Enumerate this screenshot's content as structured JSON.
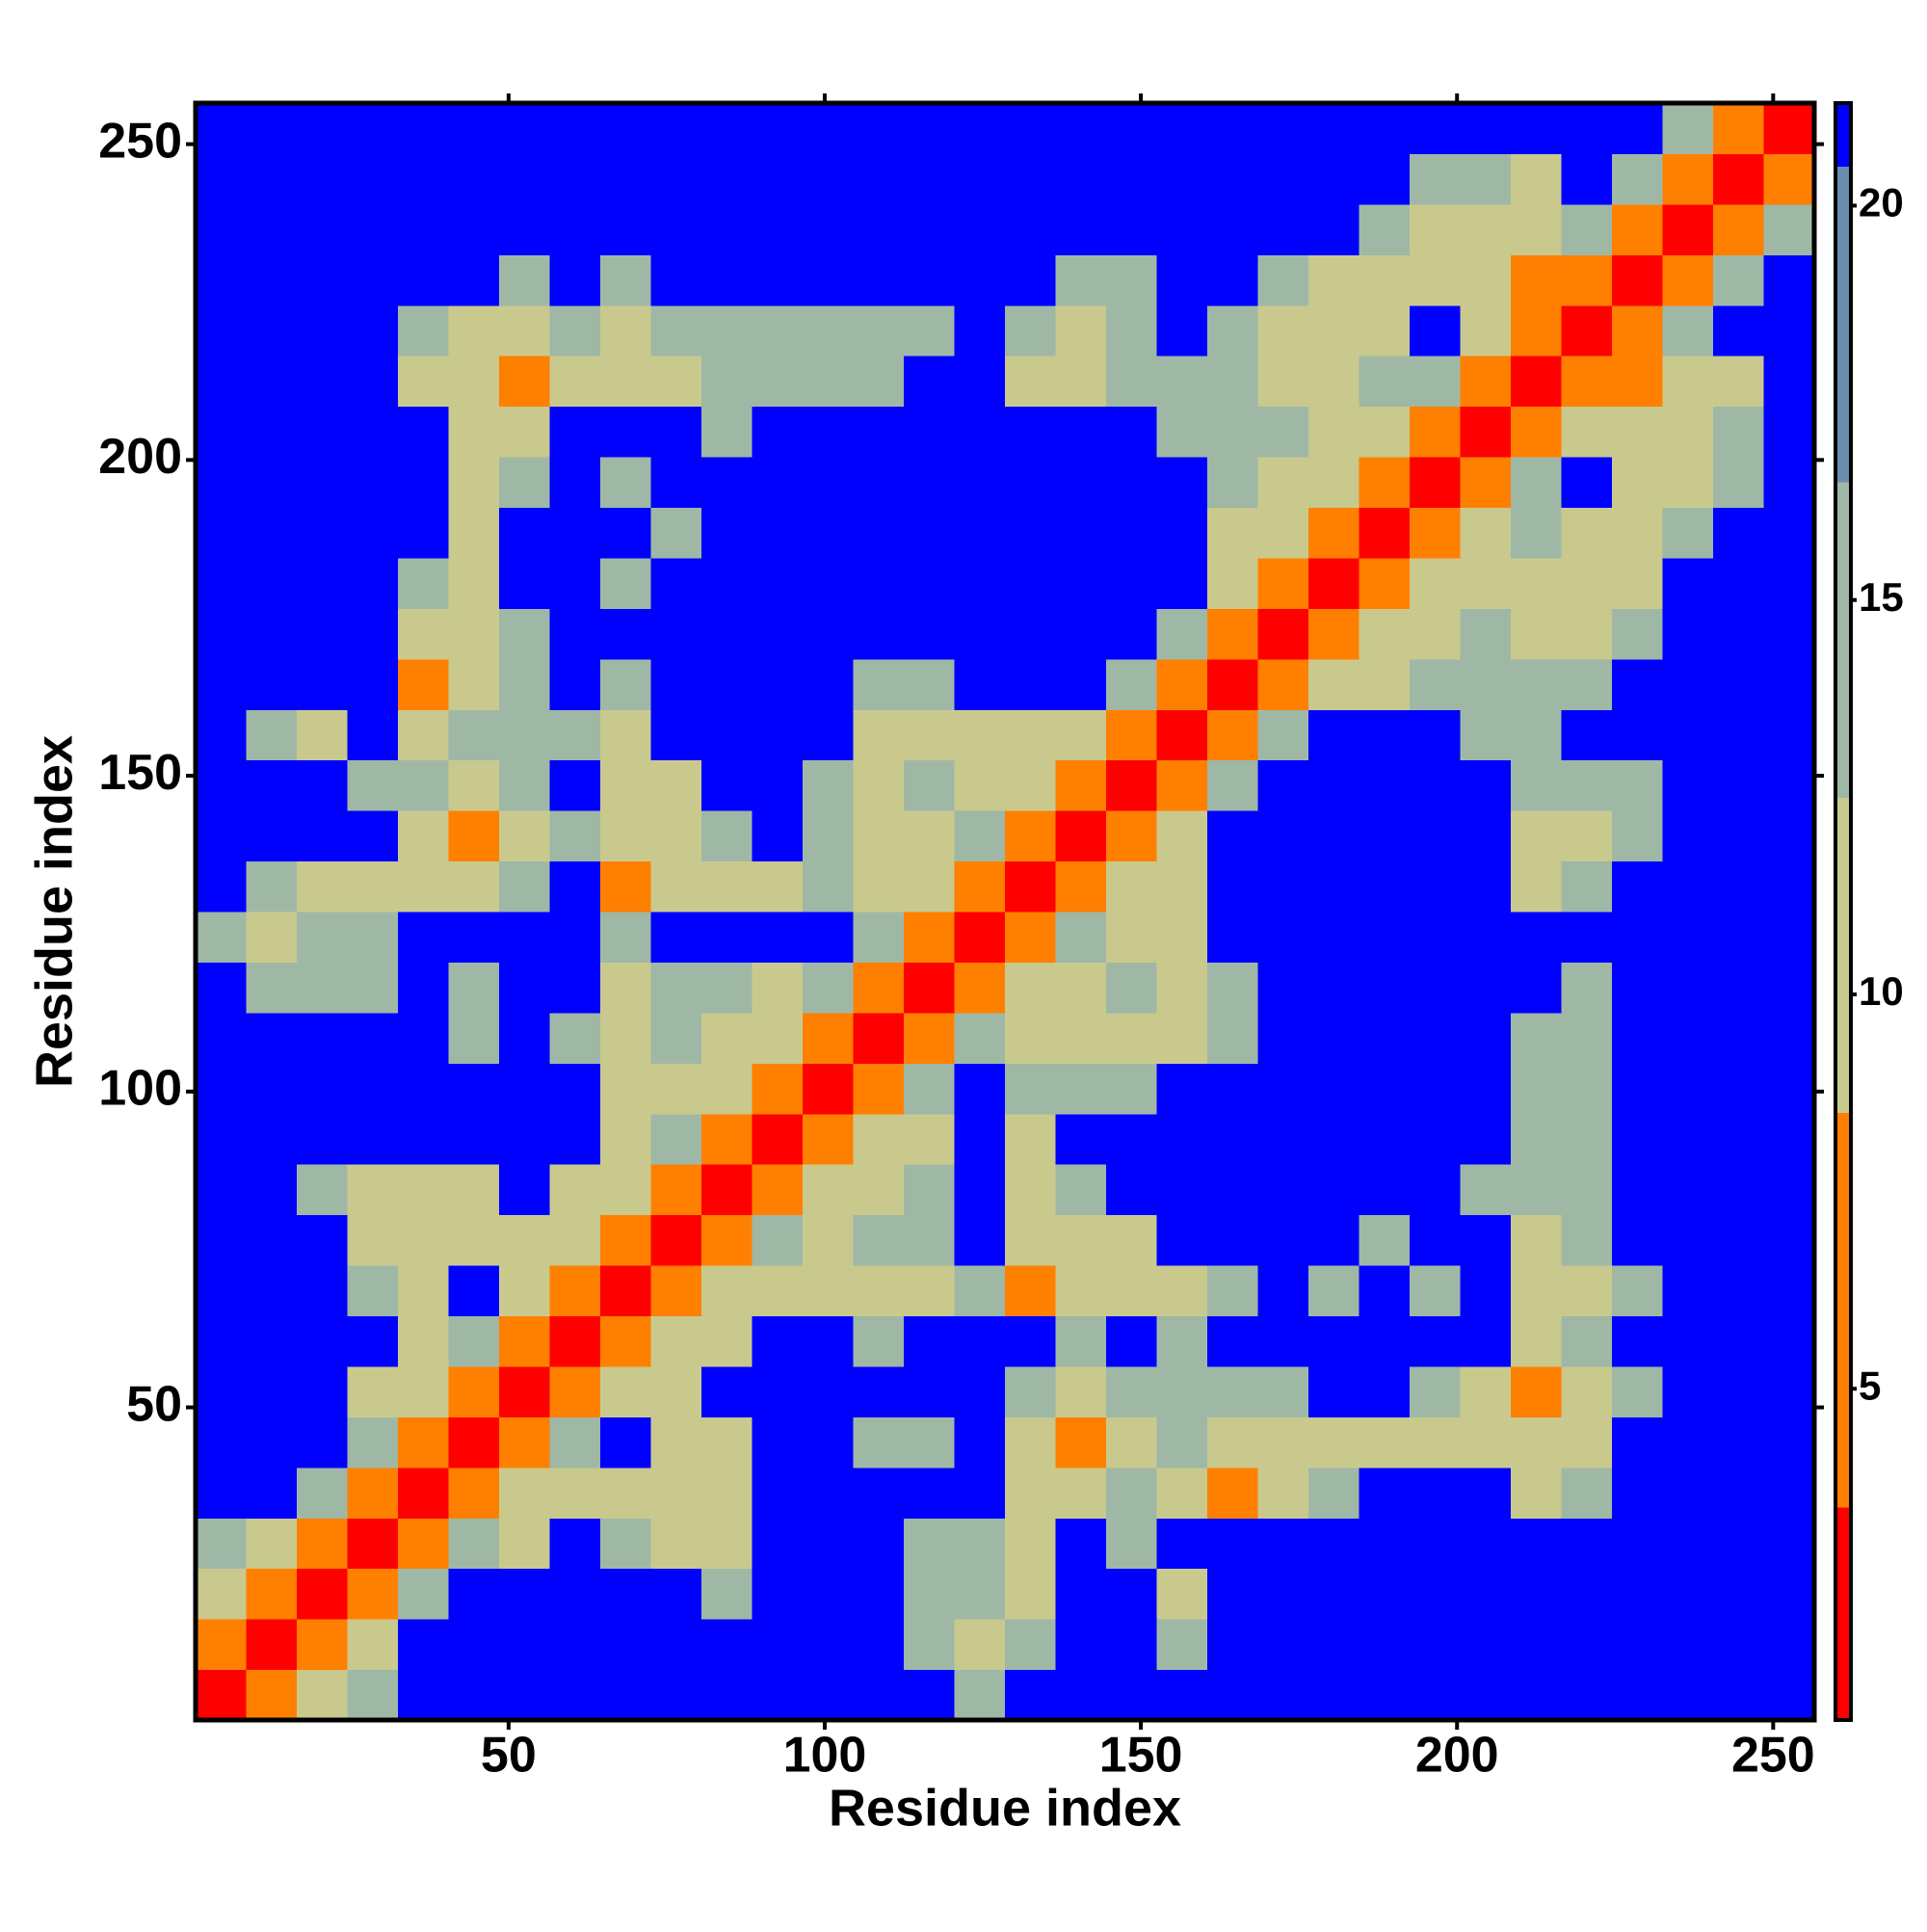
{
  "chart_data": {
    "type": "heatmap",
    "x_label": "Residue index",
    "y_label": "Residue index",
    "xlim": [
      0.5,
      256.5
    ],
    "ylim": [
      0.5,
      256.5
    ],
    "xticks": [
      50,
      100,
      150,
      200,
      250
    ],
    "yticks": [
      50,
      100,
      150,
      200,
      250
    ],
    "xbins": [
      0.5,
      8.5,
      16.5,
      24.5,
      32.5,
      40.5,
      48.5,
      56.5,
      64.5,
      72.5,
      80.5,
      88.5,
      96.5,
      104.5,
      112.5,
      120.5,
      128.5,
      136.5,
      144.5,
      152.5,
      160.5,
      168.5,
      176.5,
      184.5,
      192.5,
      200.5,
      208.5,
      216.5,
      224.5,
      232.5,
      240.5,
      248.5,
      256.5
    ],
    "ybins": [
      0.5,
      8.5,
      16.5,
      24.5,
      32.5,
      40.5,
      48.5,
      56.5,
      64.5,
      72.5,
      80.5,
      88.5,
      96.5,
      104.5,
      112.5,
      120.5,
      128.5,
      136.5,
      144.5,
      152.5,
      160.5,
      168.5,
      176.5,
      184.5,
      192.5,
      200.5,
      208.5,
      216.5,
      224.5,
      232.5,
      240.5,
      248.5,
      256.5
    ],
    "z": [
      [
        2,
        6,
        11,
        13,
        21,
        21,
        21,
        21,
        21,
        21,
        21,
        21,
        21,
        21,
        21,
        13,
        21,
        21,
        21,
        21,
        21,
        21,
        21,
        21,
        21,
        21,
        21,
        21,
        21,
        21,
        21,
        21
      ],
      [
        6,
        2,
        7,
        10,
        21,
        21,
        21,
        21,
        21,
        21,
        21,
        21,
        21,
        21,
        13,
        11,
        14,
        21,
        21,
        14,
        21,
        21,
        21,
        21,
        21,
        21,
        21,
        21,
        21,
        21,
        21,
        21
      ],
      [
        11,
        7,
        2,
        7,
        13,
        21,
        21,
        21,
        21,
        21,
        14,
        21,
        21,
        21,
        15,
        13,
        11,
        21,
        21,
        12,
        21,
        21,
        21,
        21,
        21,
        21,
        21,
        21,
        21,
        21,
        21,
        21
      ],
      [
        13,
        10,
        7,
        2,
        7,
        13,
        11,
        21,
        13,
        11,
        12,
        21,
        21,
        21,
        15,
        14,
        10,
        21,
        13,
        21,
        21,
        21,
        21,
        21,
        21,
        21,
        21,
        21,
        21,
        21,
        21,
        21
      ],
      [
        21,
        21,
        13,
        7,
        2,
        8,
        9,
        12,
        11,
        10,
        11,
        21,
        21,
        21,
        21,
        21,
        11,
        11,
        13,
        12,
        8,
        11,
        14,
        21,
        21,
        21,
        12,
        13,
        21,
        21,
        21,
        21
      ],
      [
        21,
        21,
        21,
        13,
        8,
        2,
        7,
        13,
        21,
        11,
        12,
        21,
        21,
        15,
        15,
        21,
        11,
        8,
        11,
        13,
        11,
        11,
        11,
        9,
        11,
        11,
        9,
        12,
        21,
        21,
        21,
        21
      ],
      [
        21,
        21,
        21,
        11,
        9,
        7,
        2,
        7,
        9,
        11,
        21,
        21,
        21,
        21,
        21,
        21,
        13,
        11,
        14,
        13,
        14,
        13,
        21,
        21,
        13,
        10,
        8,
        11,
        14,
        21,
        21,
        21
      ],
      [
        21,
        21,
        21,
        21,
        12,
        13,
        7,
        2,
        7,
        9,
        11,
        21,
        21,
        13,
        21,
        21,
        21,
        13,
        21,
        14,
        21,
        21,
        21,
        21,
        21,
        21,
        11,
        13,
        21,
        21,
        21,
        21
      ],
      [
        21,
        21,
        21,
        13,
        11,
        21,
        9,
        7,
        2,
        7,
        9,
        10,
        12,
        11,
        11,
        13,
        8,
        9,
        11,
        12,
        14,
        21,
        15,
        21,
        16,
        21,
        9,
        11,
        13,
        21,
        21,
        21
      ],
      [
        21,
        21,
        21,
        11,
        10,
        11,
        11,
        9,
        7,
        2,
        7,
        13,
        11,
        13,
        13,
        21,
        11,
        11,
        11,
        21,
        21,
        21,
        21,
        15,
        21,
        21,
        12,
        13,
        21,
        21,
        21,
        21
      ],
      [
        21,
        21,
        14,
        12,
        11,
        12,
        21,
        11,
        9,
        7,
        2,
        7,
        10,
        11,
        13,
        21,
        11,
        13,
        21,
        21,
        21,
        21,
        21,
        21,
        21,
        16,
        15,
        16,
        21,
        21,
        21,
        21
      ],
      [
        21,
        21,
        21,
        21,
        21,
        21,
        21,
        21,
        10,
        13,
        7,
        2,
        7,
        10,
        12,
        21,
        12,
        21,
        21,
        21,
        21,
        21,
        21,
        21,
        21,
        21,
        15,
        16,
        21,
        21,
        21,
        21
      ],
      [
        21,
        21,
        21,
        21,
        21,
        21,
        21,
        21,
        12,
        11,
        10,
        7,
        2,
        7,
        13,
        21,
        14,
        13,
        14,
        21,
        21,
        21,
        21,
        21,
        21,
        21,
        16,
        16,
        21,
        21,
        21,
        21
      ],
      [
        21,
        21,
        21,
        21,
        21,
        15,
        21,
        13,
        11,
        13,
        11,
        10,
        7,
        2,
        7,
        13,
        12,
        11,
        11,
        12,
        14,
        21,
        21,
        21,
        21,
        21,
        15,
        16,
        21,
        21,
        21,
        21
      ],
      [
        21,
        13,
        15,
        15,
        21,
        15,
        21,
        21,
        11,
        13,
        13,
        12,
        13,
        7,
        2,
        7,
        12,
        11,
        13,
        11,
        15,
        21,
        21,
        21,
        21,
        21,
        21,
        16,
        21,
        21,
        21,
        21
      ],
      [
        13,
        11,
        13,
        14,
        21,
        21,
        21,
        21,
        13,
        21,
        21,
        21,
        21,
        13,
        7,
        2,
        7,
        13,
        11,
        12,
        21,
        21,
        21,
        21,
        21,
        21,
        21,
        21,
        21,
        21,
        21,
        21
      ],
      [
        21,
        14,
        11,
        10,
        11,
        11,
        13,
        21,
        8,
        11,
        11,
        12,
        14,
        12,
        12,
        7,
        2,
        7,
        9,
        10,
        21,
        21,
        21,
        21,
        21,
        21,
        12,
        14,
        21,
        21,
        21,
        21
      ],
      [
        21,
        21,
        21,
        21,
        11,
        8,
        11,
        13,
        9,
        11,
        13,
        21,
        13,
        11,
        11,
        13,
        7,
        2,
        6,
        9,
        21,
        21,
        21,
        21,
        21,
        21,
        11,
        12,
        15,
        21,
        21,
        21
      ],
      [
        21,
        21,
        21,
        13,
        13,
        11,
        14,
        21,
        11,
        11,
        21,
        21,
        14,
        11,
        13,
        11,
        9,
        6,
        2,
        7,
        13,
        21,
        21,
        21,
        21,
        21,
        13,
        13,
        15,
        21,
        21,
        21
      ],
      [
        21,
        14,
        12,
        21,
        12,
        13,
        13,
        14,
        12,
        21,
        21,
        21,
        21,
        12,
        11,
        12,
        10,
        9,
        7,
        2,
        7,
        13,
        21,
        21,
        21,
        15,
        15,
        21,
        21,
        21,
        21,
        21
      ],
      [
        21,
        21,
        21,
        21,
        8,
        11,
        14,
        21,
        14,
        21,
        21,
        21,
        21,
        14,
        15,
        21,
        21,
        21,
        13,
        7,
        2,
        7,
        10,
        11,
        13,
        14,
        13,
        14,
        21,
        21,
        21,
        21
      ],
      [
        21,
        21,
        21,
        21,
        11,
        11,
        13,
        21,
        21,
        21,
        21,
        21,
        21,
        21,
        21,
        21,
        21,
        21,
        21,
        13,
        7,
        2,
        7,
        10,
        12,
        13,
        11,
        12,
        14,
        21,
        21,
        21
      ],
      [
        21,
        21,
        21,
        21,
        14,
        11,
        21,
        21,
        15,
        21,
        21,
        21,
        21,
        21,
        21,
        21,
        21,
        21,
        21,
        21,
        10,
        7,
        2,
        7,
        9,
        11,
        12,
        11,
        12,
        21,
        21,
        21
      ],
      [
        21,
        21,
        21,
        21,
        21,
        9,
        21,
        21,
        21,
        15,
        21,
        21,
        21,
        21,
        21,
        21,
        21,
        21,
        21,
        21,
        11,
        10,
        7,
        2,
        7,
        9,
        13,
        11,
        10,
        14,
        21,
        21
      ],
      [
        21,
        21,
        21,
        21,
        21,
        11,
        13,
        21,
        16,
        21,
        21,
        21,
        21,
        21,
        21,
        21,
        21,
        21,
        21,
        21,
        13,
        12,
        9,
        7,
        2,
        7,
        13,
        21,
        11,
        11,
        13,
        21
      ],
      [
        21,
        21,
        21,
        21,
        21,
        11,
        10,
        21,
        21,
        21,
        16,
        21,
        21,
        21,
        21,
        21,
        21,
        21,
        21,
        15,
        14,
        13,
        11,
        9,
        7,
        2,
        7,
        9,
        12,
        11,
        13,
        21
      ],
      [
        21,
        21,
        21,
        21,
        12,
        9,
        8,
        11,
        9,
        12,
        15,
        15,
        16,
        15,
        21,
        21,
        12,
        11,
        13,
        15,
        13,
        11,
        12,
        13,
        13,
        7,
        2,
        6,
        8,
        12,
        12,
        21
      ],
      [
        21,
        21,
        21,
        21,
        13,
        12,
        11,
        13,
        11,
        13,
        16,
        16,
        16,
        16,
        16,
        21,
        14,
        12,
        13,
        21,
        14,
        12,
        11,
        11,
        21,
        9,
        6,
        2,
        7,
        13,
        21,
        21
      ],
      [
        21,
        21,
        21,
        21,
        21,
        21,
        14,
        21,
        13,
        21,
        21,
        21,
        21,
        21,
        21,
        21,
        21,
        15,
        15,
        21,
        21,
        14,
        12,
        10,
        11,
        12,
        8,
        7,
        2,
        7,
        13,
        21
      ],
      [
        21,
        21,
        21,
        21,
        21,
        21,
        21,
        21,
        21,
        21,
        21,
        21,
        21,
        21,
        21,
        21,
        21,
        21,
        21,
        21,
        21,
        21,
        21,
        14,
        11,
        11,
        12,
        13,
        7,
        2,
        7,
        13
      ],
      [
        21,
        21,
        21,
        21,
        21,
        21,
        21,
        21,
        21,
        21,
        21,
        21,
        21,
        21,
        21,
        21,
        21,
        21,
        21,
        21,
        21,
        21,
        21,
        21,
        13,
        13,
        12,
        21,
        13,
        7,
        2,
        7
      ],
      [
        21,
        21,
        21,
        21,
        21,
        21,
        21,
        21,
        21,
        21,
        21,
        21,
        21,
        21,
        21,
        21,
        21,
        21,
        21,
        21,
        21,
        21,
        21,
        21,
        21,
        21,
        21,
        21,
        21,
        13,
        7,
        2
      ]
    ],
    "colorbar": {
      "bounds": [
        0.8,
        3.5,
        8.5,
        12.5,
        16.5,
        20.5,
        21.3
      ],
      "colors": [
        "#ff0000",
        "#ff8000",
        "#c9c98e",
        "#9fb8a6",
        "#6a8cae",
        "#0000ff"
      ],
      "ticks": [
        5,
        10,
        15,
        20
      ]
    }
  }
}
